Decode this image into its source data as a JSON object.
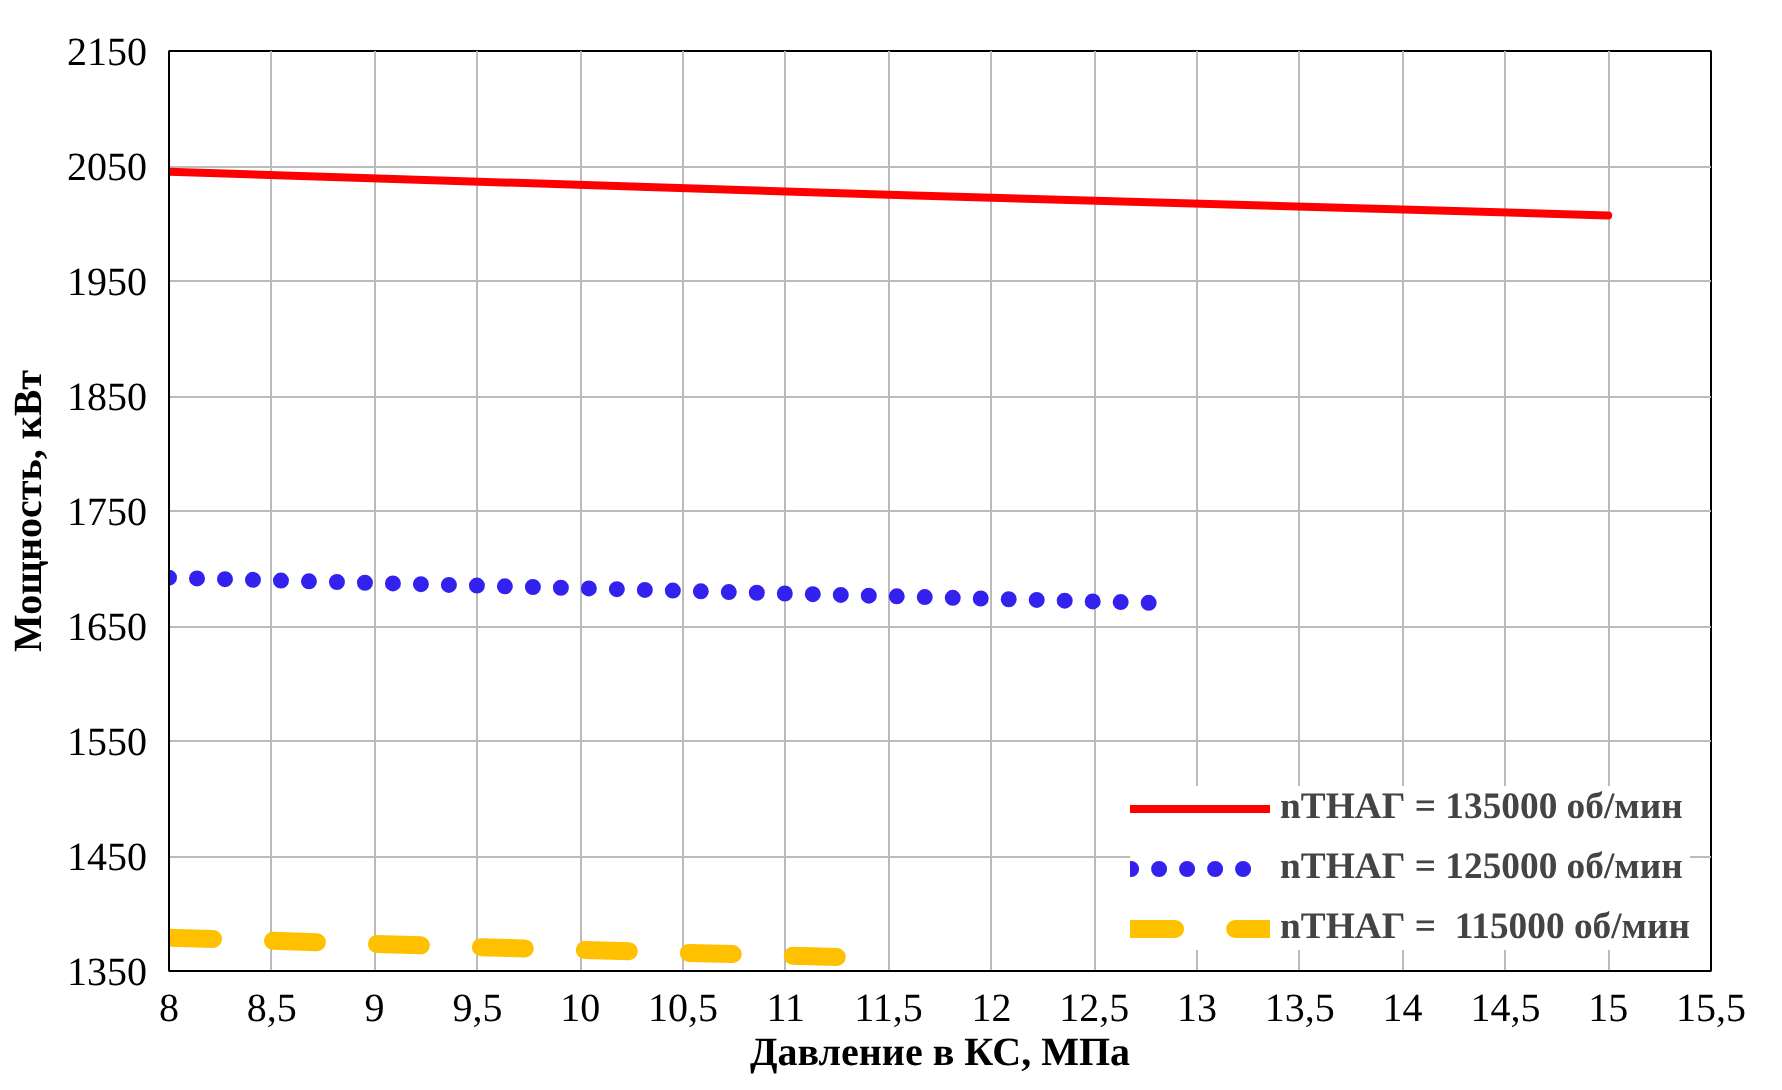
{
  "chart_data": {
    "type": "line",
    "xlabel": "Давление в КС, МПа",
    "ylabel": "Мощность, кВт",
    "xlim": [
      8,
      15.5
    ],
    "xticks": [
      {
        "value": 8,
        "label": "8"
      },
      {
        "value": 8.5,
        "label": "8,5"
      },
      {
        "value": 9,
        "label": "9"
      },
      {
        "value": 9.5,
        "label": "9,5"
      },
      {
        "value": 10,
        "label": "10"
      },
      {
        "value": 10.5,
        "label": "10,5"
      },
      {
        "value": 11,
        "label": "11"
      },
      {
        "value": 11.5,
        "label": "11,5"
      },
      {
        "value": 12,
        "label": "12"
      },
      {
        "value": 12.5,
        "label": "12,5"
      },
      {
        "value": 13,
        "label": "13"
      },
      {
        "value": 13.5,
        "label": "13,5"
      },
      {
        "value": 14,
        "label": "14"
      },
      {
        "value": 14.5,
        "label": "14,5"
      },
      {
        "value": 15,
        "label": "15"
      },
      {
        "value": 15.5,
        "label": "15,5"
      }
    ],
    "ylim": [
      1350,
      2150
    ],
    "yticks": [
      1350,
      1450,
      1550,
      1650,
      1750,
      1850,
      1950,
      2050,
      2150
    ],
    "grid": true,
    "legend": "bottom right",
    "series": [
      {
        "name": "nТНАГ = 135000 об/мин",
        "color": "#ff0000",
        "line_style": "solid",
        "x": [
          8,
          11.5,
          15
        ],
        "values": [
          2045,
          2025,
          2007
        ]
      },
      {
        "name": "nТНАГ = 125000 об/мин",
        "color": "#3322ee",
        "line_style": "dotted",
        "x": [
          8,
          10.4,
          12.8
        ],
        "values": [
          1692,
          1681,
          1670
        ]
      },
      {
        "name": "nТНАГ =  115000 об/мин",
        "color": "#ffc000",
        "line_style": "dashed",
        "x": [
          8,
          9.65,
          11.3
        ],
        "values": [
          1379,
          1370,
          1362
        ]
      }
    ]
  }
}
